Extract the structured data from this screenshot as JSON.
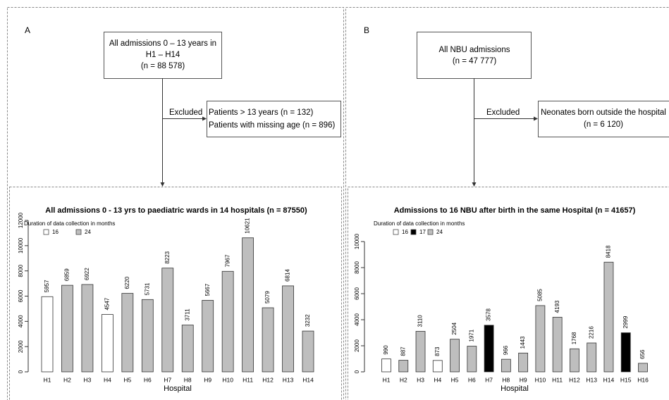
{
  "panels": [
    {
      "label": "A",
      "start": [
        "All admissions 0 – 13 years in",
        "H1 – H14",
        "(n = 88 578)"
      ],
      "excluded_label": "Excluded",
      "excluded": [
        "Patients > 13 years (n = 132)",
        "Patients with missing age (n = 896)"
      ]
    },
    {
      "label": "B",
      "start": [
        "All NBU admissions",
        "(n = 47 777)"
      ],
      "excluded_label": "Excluded",
      "excluded": [
        "Neonates born outside the hospital",
        "(n = 6 120)"
      ]
    }
  ],
  "chart_data": [
    {
      "type": "bar",
      "title": "All admissions 0 - 13 yrs to paediatric wards in 14 hospitals (n = 87550)",
      "x_label": "Hospital",
      "legend_title": "Duration of data collection in months",
      "legend": [
        {
          "name": "16",
          "color": "#ffffff"
        },
        {
          "name": "24",
          "color": "#bebebe"
        }
      ],
      "categories": [
        "H1",
        "H2",
        "H3",
        "H4",
        "H5",
        "H6",
        "H7",
        "H8",
        "H9",
        "H10",
        "H11",
        "H12",
        "H13",
        "H14"
      ],
      "values": [
        5957,
        6859,
        6922,
        4547,
        6220,
        5731,
        8223,
        3711,
        5667,
        7967,
        10621,
        5079,
        6814,
        3232
      ],
      "colors": [
        "#ffffff",
        "#bebebe",
        "#bebebe",
        "#ffffff",
        "#bebebe",
        "#bebebe",
        "#bebebe",
        "#bebebe",
        "#bebebe",
        "#bebebe",
        "#bebebe",
        "#bebebe",
        "#bebebe",
        "#bebebe"
      ],
      "ylim": [
        0,
        12000
      ],
      "yticks": [
        0,
        2000,
        4000,
        6000,
        8000,
        10000,
        12000
      ]
    },
    {
      "type": "bar",
      "title": "Admissions to 16 NBU after birth in the same Hospital (n = 41657)",
      "x_label": "Hospital",
      "legend_title": "Duration of data collection in months",
      "legend": [
        {
          "name": "16",
          "color": "#ffffff"
        },
        {
          "name": "17",
          "color": "#000000"
        },
        {
          "name": "24",
          "color": "#bebebe"
        }
      ],
      "categories": [
        "H1",
        "H2",
        "H3",
        "H4",
        "H5",
        "H6",
        "H7",
        "H8",
        "H9",
        "H10",
        "H11",
        "H12",
        "H13",
        "H14",
        "H15",
        "H16"
      ],
      "values": [
        990,
        887,
        3110,
        873,
        2504,
        1971,
        3578,
        966,
        1443,
        5085,
        4193,
        1768,
        2216,
        8418,
        2999,
        656
      ],
      "colors": [
        "#ffffff",
        "#bebebe",
        "#bebebe",
        "#ffffff",
        "#bebebe",
        "#bebebe",
        "#000000",
        "#bebebe",
        "#bebebe",
        "#bebebe",
        "#bebebe",
        "#bebebe",
        "#bebebe",
        "#bebebe",
        "#000000",
        "#bebebe"
      ],
      "ylim": [
        0,
        10000
      ],
      "yticks": [
        0,
        2000,
        4000,
        6000,
        8000,
        10000
      ]
    }
  ]
}
